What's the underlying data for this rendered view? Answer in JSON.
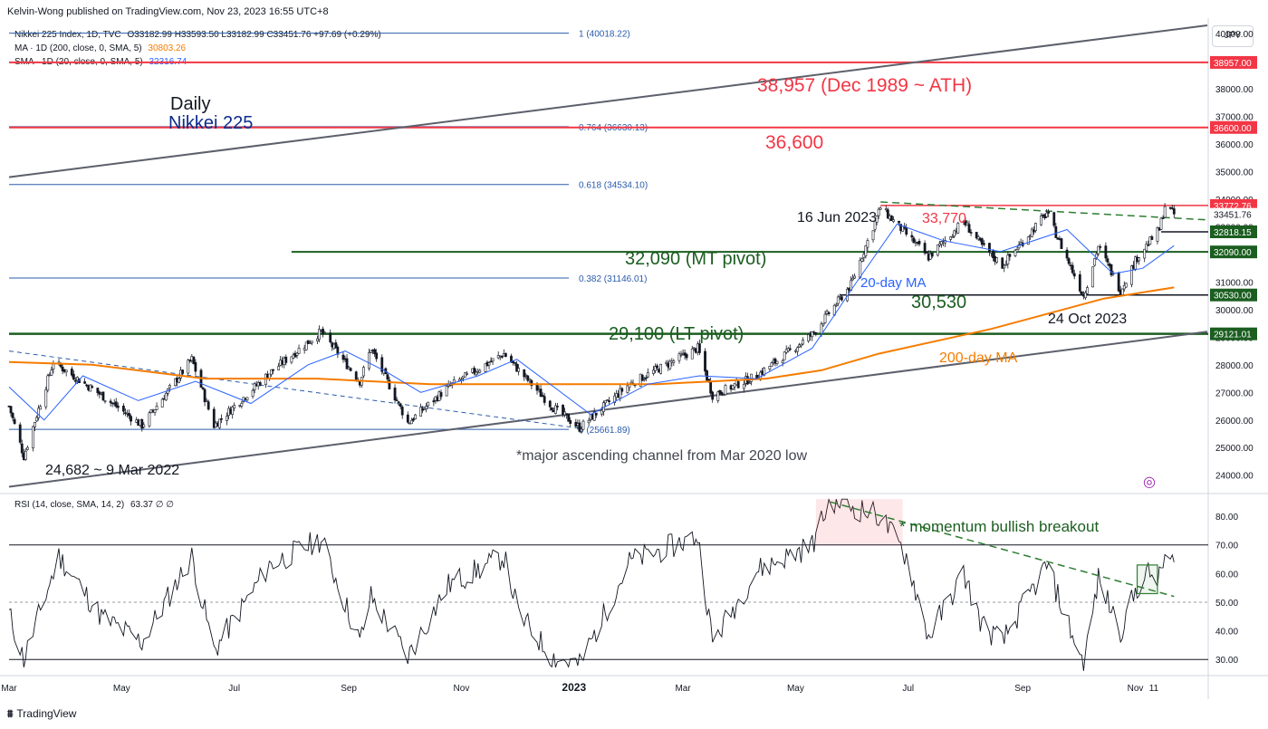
{
  "header": {
    "published": "Kelvin-Wong published on TradingView.com, Nov 23, 2023 16:55 UTC+8"
  },
  "legend": {
    "symbol": "Nikkei 225 Index, 1D, TVC",
    "ohlc": "O33182.99 H33593.50 L33182.99 C33451.76 +97.69 (+0.29%)",
    "ma200_label": "MA · 1D (200, close, 0, SMA, 5)",
    "ma200_value": "30803.26",
    "sma20_label": "SMA · 1D (20, close, 0, SMA, 5)",
    "sma20_value": "32316.74",
    "rsi_label": "RSI (14, close, SMA, 14, 2)",
    "rsi_value": "63.37  ∅  ∅"
  },
  "currency": "JPY",
  "brand": "TradingView",
  "colors": {
    "red": "#f23645",
    "green": "#1b5e20",
    "blue": "#2962ff",
    "navy": "#0d2c8c",
    "orange": "#f57c00",
    "dark": "#131722",
    "channel": "#5d606b",
    "fib": "#2a5caa"
  },
  "annotations": {
    "title_daily": "Daily",
    "title_name": "Nikkei 225",
    "ath": "38,957 (Dec 1989 ~ ATH)",
    "r2": "36,600",
    "jun_high": "16 Jun 2023",
    "r1": "33,770",
    "mt_pivot": "32,090 (MT pivot)",
    "ma20_tag": "20-day MA",
    "s1": "30,530",
    "oct_low": "24 Oct 2023",
    "lt_pivot": "29,100 (LT pivot)",
    "ma200_tag": "200-day MA",
    "mar_low": "24,682 ~ 9 Mar 2022",
    "channel_note": "*major ascending channel from Mar 2020 low",
    "rsi_note": "* momentum bullish breakout"
  },
  "chart_data": [
    {
      "type": "line",
      "title": "",
      "series_type": "candlestick",
      "y_axis": {
        "ticks": [
          "24000.00",
          "25000.00",
          "26000.00",
          "27000.00",
          "28000.00",
          "29000.00",
          "30000.00",
          "31000.00",
          "32000.00",
          "33000.00",
          "34000.00",
          "35000.00",
          "36000.00",
          "37000.00",
          "38000.00",
          "39000.00",
          "40000.00"
        ],
        "range": [
          23400,
          40300
        ]
      },
      "x_axis": {
        "ticks": [
          "Mar",
          "May",
          "Jul",
          "Sep",
          "Nov",
          "2023",
          "Mar",
          "May",
          "Jul",
          "Sep",
          "Nov",
          "11"
        ],
        "range": [
          "2022-03-01",
          "2023-12-10"
        ]
      },
      "price_labels": [
        {
          "value": "38957.00",
          "kind": "red"
        },
        {
          "value": "36600.00",
          "kind": "red"
        },
        {
          "value": "33772.76",
          "kind": "red"
        },
        {
          "value": "33451.76",
          "kind": "plain"
        },
        {
          "value": "32818.15",
          "kind": "green"
        },
        {
          "value": "32090.00",
          "kind": "green"
        },
        {
          "value": "30530.00",
          "kind": "green"
        },
        {
          "value": "29121.01",
          "kind": "green"
        }
      ],
      "fibonacci": [
        {
          "label": "1 (40018.22)",
          "value": 40018.22
        },
        {
          "label": "0.764 (36630.13)",
          "value": 36630.13
        },
        {
          "label": "0.618 (34534.10)",
          "value": 34534.1
        },
        {
          "label": "0.382 (31146.01)",
          "value": 31146.01
        },
        {
          "label": "0 (25661.89)",
          "value": 25661.89
        }
      ],
      "horizontal_levels": [
        38957,
        36600,
        33772.76,
        32818.15,
        32090,
        30530,
        29121.01
      ],
      "close_path": [
        [
          "2022-03-01",
          26500
        ],
        [
          "2022-03-09",
          24682
        ],
        [
          "2022-03-25",
          28100
        ],
        [
          "2022-04-20",
          26900
        ],
        [
          "2022-05-12",
          25800
        ],
        [
          "2022-06-08",
          28200
        ],
        [
          "2022-06-20",
          25800
        ],
        [
          "2022-07-20",
          27700
        ],
        [
          "2022-08-17",
          29200
        ],
        [
          "2022-09-07",
          27400
        ],
        [
          "2022-09-13",
          28600
        ],
        [
          "2022-10-03",
          25900
        ],
        [
          "2022-10-25",
          27200
        ],
        [
          "2022-11-24",
          28400
        ],
        [
          "2022-12-02",
          27800
        ],
        [
          "2022-12-20",
          26500
        ],
        [
          "2023-01-04",
          25716
        ],
        [
          "2023-01-31",
          27300
        ],
        [
          "2023-03-09",
          28600
        ],
        [
          "2023-03-17",
          26900
        ],
        [
          "2023-04-10",
          27600
        ],
        [
          "2023-05-10",
          29100
        ],
        [
          "2023-05-31",
          30900
        ],
        [
          "2023-06-16",
          33700
        ],
        [
          "2023-07-12",
          31900
        ],
        [
          "2023-07-31",
          33200
        ],
        [
          "2023-08-10",
          32300
        ],
        [
          "2023-08-21",
          31600
        ],
        [
          "2023-09-14",
          33500
        ],
        [
          "2023-10-04",
          30500
        ],
        [
          "2023-10-12",
          32300
        ],
        [
          "2023-10-24",
          30700
        ],
        [
          "2023-11-02",
          31900
        ],
        [
          "2023-11-14",
          32900
        ],
        [
          "2023-11-17",
          33770
        ],
        [
          "2023-11-22",
          33452
        ]
      ],
      "ma20_path": [
        [
          "2022-03-01",
          27200
        ],
        [
          "2022-03-20",
          26000
        ],
        [
          "2022-04-10",
          27600
        ],
        [
          "2022-05-10",
          26700
        ],
        [
          "2022-06-10",
          27400
        ],
        [
          "2022-07-10",
          26600
        ],
        [
          "2022-08-10",
          28000
        ],
        [
          "2022-08-30",
          28500
        ],
        [
          "2022-09-20",
          27800
        ],
        [
          "2022-10-10",
          27000
        ],
        [
          "2022-11-10",
          27600
        ],
        [
          "2022-12-01",
          28200
        ],
        [
          "2023-01-10",
          26200
        ],
        [
          "2023-02-10",
          27300
        ],
        [
          "2023-03-10",
          27600
        ],
        [
          "2023-04-10",
          27500
        ],
        [
          "2023-05-10",
          28600
        ],
        [
          "2023-06-01",
          30800
        ],
        [
          "2023-06-25",
          33100
        ],
        [
          "2023-07-20",
          32500
        ],
        [
          "2023-08-20",
          32100
        ],
        [
          "2023-09-25",
          32900
        ],
        [
          "2023-10-20",
          31300
        ],
        [
          "2023-11-05",
          31500
        ],
        [
          "2023-11-22",
          32317
        ]
      ],
      "ma200_path": [
        [
          "2022-03-01",
          28100
        ],
        [
          "2022-04-15",
          28000
        ],
        [
          "2022-06-15",
          27500
        ],
        [
          "2022-08-15",
          27500
        ],
        [
          "2022-10-15",
          27300
        ],
        [
          "2022-12-15",
          27300
        ],
        [
          "2023-02-15",
          27300
        ],
        [
          "2023-04-15",
          27500
        ],
        [
          "2023-05-15",
          27800
        ],
        [
          "2023-06-15",
          28400
        ],
        [
          "2023-08-15",
          29300
        ],
        [
          "2023-10-15",
          30400
        ],
        [
          "2023-11-22",
          30803
        ]
      ],
      "ascending_channel": {
        "upper": [
          [
            "2022-03-01",
            34800
          ],
          [
            "2023-12-10",
            40300
          ]
        ],
        "lower": [
          [
            "2022-03-01",
            23580
          ],
          [
            "2023-12-10",
            29200
          ]
        ]
      },
      "descending_resistance": [
        [
          "2023-06-16",
          33900
        ],
        [
          "2023-12-10",
          33250
        ]
      ],
      "old_downtrend": [
        [
          "2022-03-01",
          28500
        ],
        [
          "2023-01-04",
          25700
        ]
      ]
    },
    {
      "type": "line",
      "title": "",
      "y_axis": {
        "ticks": [
          "30.00",
          "40.00",
          "50.00",
          "60.00",
          "70.00",
          "80.00"
        ],
        "range": [
          25,
          87
        ]
      },
      "levels": [
        70,
        50,
        30
      ],
      "rsi_path": [
        [
          "2022-03-01",
          46
        ],
        [
          "2022-03-09",
          30
        ],
        [
          "2022-03-28",
          66
        ],
        [
          "2022-04-20",
          45
        ],
        [
          "2022-05-12",
          36
        ],
        [
          "2022-06-08",
          66
        ],
        [
          "2022-06-20",
          33
        ],
        [
          "2022-07-20",
          63
        ],
        [
          "2022-08-17",
          72
        ],
        [
          "2022-09-07",
          36
        ],
        [
          "2022-09-13",
          52
        ],
        [
          "2022-10-03",
          31
        ],
        [
          "2022-10-25",
          56
        ],
        [
          "2022-11-24",
          66
        ],
        [
          "2022-12-02",
          46
        ],
        [
          "2022-12-20",
          31
        ],
        [
          "2023-01-04",
          28
        ],
        [
          "2023-01-31",
          64
        ],
        [
          "2023-03-09",
          73
        ],
        [
          "2023-03-17",
          36
        ],
        [
          "2023-04-10",
          61
        ],
        [
          "2023-05-10",
          70
        ],
        [
          "2023-05-20",
          86
        ],
        [
          "2023-06-16",
          80
        ],
        [
          "2023-06-30",
          66
        ],
        [
          "2023-07-12",
          38
        ],
        [
          "2023-07-31",
          60
        ],
        [
          "2023-08-10",
          42
        ],
        [
          "2023-08-21",
          36
        ],
        [
          "2023-09-14",
          63
        ],
        [
          "2023-10-04",
          28
        ],
        [
          "2023-10-12",
          58
        ],
        [
          "2023-10-24",
          40
        ],
        [
          "2023-11-02",
          55
        ],
        [
          "2023-11-08",
          60
        ],
        [
          "2023-11-14",
          58
        ],
        [
          "2023-11-17",
          66
        ],
        [
          "2023-11-22",
          63
        ]
      ],
      "breakout_trendline": [
        [
          "2023-05-20",
          85
        ],
        [
          "2023-11-22",
          52
        ]
      ],
      "breakout_box": [
        [
          "2023-11-02",
          53
        ],
        [
          "2023-11-13",
          63
        ]
      ]
    }
  ]
}
